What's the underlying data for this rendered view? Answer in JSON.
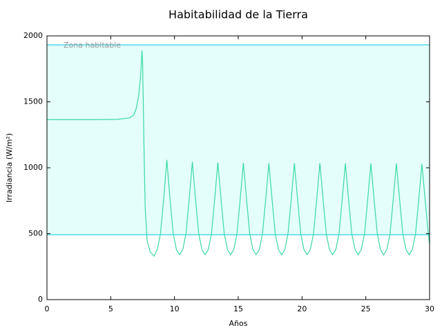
{
  "chart_data": {
    "type": "line",
    "title": "Habitabilidad de la Tierra",
    "xlabel": "Años",
    "ylabel": "Irradiancia (W/m²)",
    "xlim": [
      0,
      30
    ],
    "ylim": [
      0,
      2000
    ],
    "xticks": [
      0,
      5,
      10,
      15,
      20,
      25,
      30
    ],
    "yticks": [
      0,
      500,
      1000,
      1500,
      2000
    ],
    "zone": {
      "label": "Zona habitable",
      "range": [
        492,
        1932
      ],
      "color": "#4fd8e6",
      "fill": "#e3fefb"
    },
    "x": [
      0,
      2,
      4,
      5.5,
      6,
      6.5,
      6.8,
      7,
      7.2,
      7.35,
      7.45,
      7.5,
      7.6,
      7.7,
      7.85,
      8.1,
      8.4,
      8.65,
      8.9,
      9.15,
      9.4,
      9.65,
      9.9,
      10.15,
      10.4,
      10.65,
      10.9,
      11.15,
      11.4,
      11.65,
      11.9,
      12.15,
      12.4,
      12.65,
      12.9,
      13.15,
      13.4,
      13.65,
      13.9,
      14.15,
      14.4,
      14.65,
      14.9,
      15.15,
      15.4,
      15.65,
      15.9,
      16.15,
      16.4,
      16.65,
      16.9,
      17.15,
      17.4,
      17.65,
      17.9,
      18.15,
      18.4,
      18.65,
      18.9,
      19.15,
      19.4,
      19.65,
      19.9,
      20.15,
      20.4,
      20.65,
      20.9,
      21.15,
      21.4,
      21.65,
      21.9,
      22.15,
      22.4,
      22.65,
      22.9,
      23.15,
      23.4,
      23.65,
      23.9,
      24.15,
      24.4,
      24.65,
      24.9,
      25.15,
      25.4,
      25.65,
      25.9,
      26.15,
      26.4,
      26.65,
      26.9,
      27.15,
      27.4,
      27.65,
      27.9,
      28.15,
      28.4,
      28.65,
      28.9,
      29.15,
      29.4,
      29.65,
      29.9,
      30
    ],
    "series": [
      {
        "color": "#3ad8a2",
        "values": [
          1365,
          1365,
          1365,
          1367,
          1372,
          1380,
          1400,
          1450,
          1550,
          1700,
          1890,
          1800,
          1200,
          700,
          450,
          360,
          330,
          380,
          500,
          760,
          1060,
          760,
          500,
          380,
          340,
          380,
          500,
          760,
          1045,
          760,
          500,
          380,
          340,
          380,
          500,
          760,
          1040,
          760,
          500,
          380,
          340,
          380,
          500,
          760,
          1035,
          760,
          500,
          380,
          340,
          380,
          500,
          760,
          1035,
          760,
          500,
          380,
          340,
          380,
          500,
          760,
          1035,
          760,
          500,
          380,
          340,
          380,
          500,
          760,
          1035,
          760,
          500,
          380,
          340,
          380,
          500,
          760,
          1033,
          760,
          500,
          380,
          340,
          380,
          500,
          760,
          1033,
          760,
          500,
          380,
          340,
          380,
          500,
          760,
          1032,
          760,
          500,
          380,
          340,
          380,
          500,
          760,
          1030,
          760,
          500,
          420
        ]
      }
    ]
  }
}
